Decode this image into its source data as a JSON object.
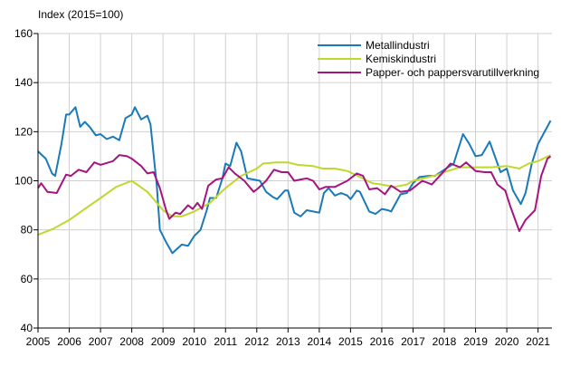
{
  "chart_data": {
    "type": "line",
    "ylabel": "Index (2015=100)",
    "xlabel": "",
    "ylim": [
      40,
      160
    ],
    "yticks": [
      40,
      60,
      80,
      100,
      120,
      140,
      160
    ],
    "xlim": [
      2005,
      2021.4
    ],
    "xticks": [
      "2005",
      "2006",
      "2007",
      "2008",
      "2009",
      "2010",
      "2011",
      "2012",
      "2013",
      "2014",
      "2015",
      "2016",
      "2017",
      "2018",
      "2019",
      "2020",
      "2021"
    ],
    "grid": true,
    "legend_position": "top-right",
    "series": [
      {
        "name": "Metallindustri",
        "color": "#1a7ab8",
        "x": [
          2005,
          2005.25,
          2005.45,
          2005.55,
          2005.75,
          2005.9,
          2006,
          2006.2,
          2006.35,
          2006.5,
          2006.65,
          2006.85,
          2007,
          2007.2,
          2007.4,
          2007.6,
          2007.8,
          2008,
          2008.1,
          2008.3,
          2008.5,
          2008.6,
          2008.8,
          2008.9,
          2009.1,
          2009.3,
          2009.6,
          2009.8,
          2010,
          2010.2,
          2010.4,
          2010.5,
          2010.7,
          2010.9,
          2011,
          2011.15,
          2011.35,
          2011.5,
          2011.7,
          2011.9,
          2012.1,
          2012.3,
          2012.5,
          2012.65,
          2012.9,
          2013,
          2013.2,
          2013.4,
          2013.6,
          2013.8,
          2014,
          2014.15,
          2014.3,
          2014.5,
          2014.7,
          2014.9,
          2015,
          2015.2,
          2015.3,
          2015.6,
          2015.8,
          2016,
          2016.2,
          2016.3,
          2016.6,
          2016.8,
          2017,
          2017.2,
          2017.5,
          2017.7,
          2018,
          2018.3,
          2018.6,
          2018.8,
          2019,
          2019.2,
          2019.45,
          2019.8,
          2020,
          2020.2,
          2020.45,
          2020.6,
          2020.8,
          2021,
          2021.4
        ],
        "y": [
          112,
          109,
          103,
          102,
          115,
          127,
          127,
          130,
          122,
          124,
          122,
          118.5,
          119,
          117,
          118,
          116.5,
          125.5,
          127,
          130,
          125,
          126.5,
          123,
          98,
          80,
          75,
          70.5,
          74,
          73.5,
          77.5,
          80,
          88,
          93,
          93,
          101,
          107,
          106,
          115.5,
          112,
          101,
          100.5,
          100,
          95.5,
          93.5,
          92.5,
          96,
          96,
          87,
          85.5,
          88,
          87.5,
          87,
          95,
          97,
          94,
          95,
          94,
          92.5,
          96,
          95.5,
          87.5,
          86.5,
          88.5,
          88,
          87.5,
          94.5,
          95,
          99,
          101.5,
          102,
          102,
          104.5,
          107,
          119,
          115,
          110,
          110.5,
          116,
          103.5,
          105,
          96,
          90.5,
          95,
          107,
          115,
          124.5
        ]
      },
      {
        "name": "Kemiskindustri",
        "color": "#c0d72e",
        "x": [
          2005,
          2005.5,
          2006,
          2006.5,
          2007,
          2007.5,
          2008,
          2008.5,
          2009,
          2009.3,
          2009.6,
          2010,
          2010.5,
          2011,
          2011.5,
          2012,
          2012.2,
          2012.6,
          2013,
          2013.3,
          2013.8,
          2014.1,
          2014.5,
          2014.9,
          2015.3,
          2015.7,
          2016,
          2016.4,
          2016.8,
          2017,
          2017.5,
          2017.8,
          2018,
          2018.5,
          2019,
          2019.5,
          2020,
          2020.4,
          2020.7,
          2021,
          2021.4
        ],
        "y": [
          78,
          80.5,
          84,
          88.5,
          93,
          97.5,
          100,
          95.5,
          88,
          85.5,
          85.5,
          87.5,
          91,
          97,
          102,
          105,
          107,
          107.5,
          107.5,
          106.5,
          106,
          105,
          105,
          104,
          101.5,
          99,
          98.5,
          97.5,
          98.5,
          100,
          101.5,
          102.5,
          103.5,
          105.5,
          105.5,
          105.5,
          106,
          105,
          107,
          108,
          110.5
        ]
      },
      {
        "name": "Papper- och pappersvarutillverkning",
        "color": "#a5157f",
        "x": [
          2005,
          2005.1,
          2005.3,
          2005.6,
          2005.9,
          2006.05,
          2006.3,
          2006.55,
          2006.8,
          2007,
          2007.4,
          2007.6,
          2007.85,
          2008,
          2008.3,
          2008.5,
          2008.7,
          2008.9,
          2009.1,
          2009.2,
          2009.4,
          2009.55,
          2009.8,
          2009.95,
          2010.1,
          2010.25,
          2010.45,
          2010.7,
          2010.9,
          2011.1,
          2011.3,
          2011.6,
          2011.9,
          2012.05,
          2012.3,
          2012.55,
          2012.8,
          2013,
          2013.2,
          2013.4,
          2013.6,
          2013.8,
          2014,
          2014.2,
          2014.5,
          2014.9,
          2015.2,
          2015.4,
          2015.6,
          2015.85,
          2016.1,
          2016.3,
          2016.6,
          2016.9,
          2017.3,
          2017.6,
          2018,
          2018.2,
          2018.5,
          2018.7,
          2019,
          2019.3,
          2019.5,
          2019.7,
          2019.95,
          2020.1,
          2020.4,
          2020.6,
          2020.9,
          2021.1,
          2021.3,
          2021.4
        ],
        "y": [
          97,
          99,
          95.5,
          95,
          102.5,
          102,
          104.5,
          103.5,
          107.5,
          106.5,
          108,
          110.5,
          110,
          109,
          106,
          103,
          103.5,
          97,
          88,
          84.5,
          87,
          86.5,
          90,
          88.5,
          91,
          88.5,
          98,
          100.5,
          101,
          105.5,
          103,
          100,
          95.5,
          97,
          100,
          104.5,
          103.5,
          103.5,
          100,
          100.5,
          101,
          100,
          96.5,
          97.5,
          97.5,
          100,
          103,
          102,
          96.5,
          97,
          94.5,
          98,
          95.5,
          96,
          100,
          98.5,
          104,
          107,
          105.5,
          107.5,
          104,
          103.5,
          103.5,
          98.5,
          96,
          90,
          79.5,
          84,
          88,
          102,
          109,
          110
        ]
      }
    ]
  }
}
